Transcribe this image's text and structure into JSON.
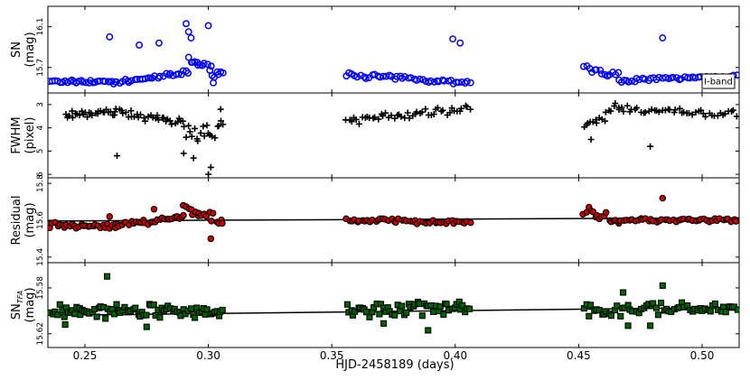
{
  "chart_data": [
    {
      "id": "sn",
      "type": "scatter",
      "ylabel_lines": [
        "SN",
        "(mag)"
      ],
      "yticks": [
        "15.7",
        "16.1"
      ],
      "ytick_values": [
        15.7,
        16.1
      ],
      "ylim": [
        16.3,
        15.45
      ],
      "xlim": [
        0.235,
        0.515
      ],
      "legend": "I-band",
      "legend_position": "lower-right",
      "marker": "open-circle",
      "color": "#0000ff",
      "segments": [
        {
          "x_range": [
            0.236,
            0.262
          ],
          "y_base": 15.56,
          "y_end": 15.56,
          "amp": 0.02,
          "n": 28
        },
        {
          "x_range": [
            0.262,
            0.292
          ],
          "y_base": 15.55,
          "y_end": 15.65,
          "amp": 0.025,
          "n": 30
        },
        {
          "x_range": [
            0.292,
            0.306
          ],
          "y_base": 15.78,
          "y_end": 15.62,
          "amp": 0.06,
          "n": 18
        },
        {
          "x_range": [
            0.356,
            0.406
          ],
          "y_base": 15.63,
          "y_end": 15.55,
          "amp": 0.025,
          "n": 45
        },
        {
          "x_range": [
            0.452,
            0.466
          ],
          "y_base": 15.7,
          "y_end": 15.62,
          "amp": 0.04,
          "n": 14
        },
        {
          "x_range": [
            0.466,
            0.514
          ],
          "y_base": 15.57,
          "y_end": 15.62,
          "amp": 0.02,
          "n": 44
        }
      ],
      "outliers": [
        {
          "x": 0.26,
          "y": 16.0
        },
        {
          "x": 0.272,
          "y": 15.92
        },
        {
          "x": 0.28,
          "y": 15.94
        },
        {
          "x": 0.291,
          "y": 16.13
        },
        {
          "x": 0.292,
          "y": 16.05
        },
        {
          "x": 0.293,
          "y": 15.99
        },
        {
          "x": 0.3,
          "y": 16.11
        },
        {
          "x": 0.302,
          "y": 15.55
        },
        {
          "x": 0.399,
          "y": 15.98
        },
        {
          "x": 0.402,
          "y": 15.94
        },
        {
          "x": 0.484,
          "y": 15.99
        }
      ]
    },
    {
      "id": "fwhm",
      "type": "scatter",
      "ylabel_lines": [
        "FWHM",
        "(pixel)"
      ],
      "yticks": [
        "3",
        "4",
        "5",
        "6"
      ],
      "ytick_values": [
        3,
        4,
        5,
        6
      ],
      "ylim": [
        2.5,
        6.15
      ],
      "xlim": [
        0.235,
        0.515
      ],
      "marker": "plus",
      "color": "#000000",
      "segments": [
        {
          "x_range": [
            0.242,
            0.262
          ],
          "y_base": 3.45,
          "y_end": 3.3,
          "amp": 0.18,
          "n": 26
        },
        {
          "x_range": [
            0.262,
            0.29
          ],
          "y_base": 3.3,
          "y_end": 3.8,
          "amp": 0.2,
          "n": 32
        },
        {
          "x_range": [
            0.29,
            0.306
          ],
          "y_base": 4.2,
          "y_end": 4.0,
          "amp": 0.5,
          "n": 20
        },
        {
          "x_range": [
            0.356,
            0.406
          ],
          "y_base": 3.7,
          "y_end": 3.2,
          "amp": 0.22,
          "n": 48
        },
        {
          "x_range": [
            0.452,
            0.466
          ],
          "y_base": 4.0,
          "y_end": 3.1,
          "amp": 0.3,
          "n": 16
        },
        {
          "x_range": [
            0.466,
            0.514
          ],
          "y_base": 3.2,
          "y_end": 3.4,
          "amp": 0.2,
          "n": 44
        }
      ],
      "outliers": [
        {
          "x": 0.263,
          "y": 5.2
        },
        {
          "x": 0.29,
          "y": 5.1
        },
        {
          "x": 0.294,
          "y": 5.3
        },
        {
          "x": 0.3,
          "y": 6.0
        },
        {
          "x": 0.301,
          "y": 5.7
        },
        {
          "x": 0.479,
          "y": 4.8
        },
        {
          "x": 0.455,
          "y": 4.5
        },
        {
          "x": 0.305,
          "y": 3.2
        }
      ]
    },
    {
      "id": "residual",
      "type": "scatter",
      "ylabel_lines": [
        "Residual",
        "(mag)"
      ],
      "yticks": [
        "15.4",
        "15.6",
        "15.8"
      ],
      "ytick_values": [
        15.4,
        15.6,
        15.8
      ],
      "ylim": [
        15.83,
        15.37
      ],
      "xlim": [
        0.235,
        0.515
      ],
      "marker": "filled-circle",
      "color": "#cc0000",
      "trend": {
        "x": [
          0.235,
          0.515
        ],
        "y": [
          15.596,
          15.613
        ]
      },
      "segments": [
        {
          "x_range": [
            0.236,
            0.262
          ],
          "y_base": 15.57,
          "y_end": 15.57,
          "amp": 0.02,
          "n": 28
        },
        {
          "x_range": [
            0.262,
            0.29
          ],
          "y_base": 15.57,
          "y_end": 15.62,
          "amp": 0.02,
          "n": 30
        },
        {
          "x_range": [
            0.29,
            0.306
          ],
          "y_base": 15.67,
          "y_end": 15.59,
          "amp": 0.04,
          "n": 18
        },
        {
          "x_range": [
            0.356,
            0.406
          ],
          "y_base": 15.6,
          "y_end": 15.59,
          "amp": 0.015,
          "n": 48
        },
        {
          "x_range": [
            0.452,
            0.466
          ],
          "y_base": 15.65,
          "y_end": 15.6,
          "amp": 0.03,
          "n": 16
        },
        {
          "x_range": [
            0.466,
            0.514
          ],
          "y_base": 15.6,
          "y_end": 15.6,
          "amp": 0.015,
          "n": 44
        }
      ],
      "outliers": [
        {
          "x": 0.301,
          "y": 15.5
        },
        {
          "x": 0.484,
          "y": 15.72
        },
        {
          "x": 0.26,
          "y": 15.62
        },
        {
          "x": 0.278,
          "y": 15.66
        }
      ]
    },
    {
      "id": "sntfa",
      "type": "scatter",
      "ylabel_lines": [
        "SN_TFA",
        "(mag)"
      ],
      "ylabel_main": "SN",
      "ylabel_sub": "TFA",
      "ylabel_unit": "(mag)",
      "yticks": [
        "15.62",
        "15.58"
      ],
      "ytick_values": [
        15.62,
        15.58
      ],
      "ylim": [
        15.558,
        15.632
      ],
      "xlim": [
        0.235,
        0.515
      ],
      "xticks": [
        "0.25",
        "0.30",
        "0.35",
        "0.40",
        "0.45",
        "0.50"
      ],
      "xtick_values": [
        0.25,
        0.3,
        0.35,
        0.4,
        0.45,
        0.5
      ],
      "xlabel": "HJD-2458189 (days)",
      "marker": "filled-square",
      "color": "#006400",
      "trend": {
        "x": [
          0.235,
          0.515
        ],
        "y": [
          15.604,
          15.597
        ]
      },
      "segments": [
        {
          "x_range": [
            0.236,
            0.306
          ],
          "y_base": 15.6,
          "y_end": 15.6,
          "amp": 0.007,
          "n": 80
        },
        {
          "x_range": [
            0.356,
            0.406
          ],
          "y_base": 15.6,
          "y_end": 15.598,
          "amp": 0.007,
          "n": 55
        },
        {
          "x_range": [
            0.452,
            0.514
          ],
          "y_base": 15.599,
          "y_end": 15.598,
          "amp": 0.007,
          "n": 60
        }
      ],
      "outliers": [
        {
          "x": 0.242,
          "y": 15.612
        },
        {
          "x": 0.259,
          "y": 15.57
        },
        {
          "x": 0.275,
          "y": 15.614
        },
        {
          "x": 0.389,
          "y": 15.617
        },
        {
          "x": 0.371,
          "y": 15.611
        },
        {
          "x": 0.479,
          "y": 15.613
        },
        {
          "x": 0.47,
          "y": 15.613
        },
        {
          "x": 0.484,
          "y": 15.578
        },
        {
          "x": 0.468,
          "y": 15.584
        }
      ]
    }
  ]
}
